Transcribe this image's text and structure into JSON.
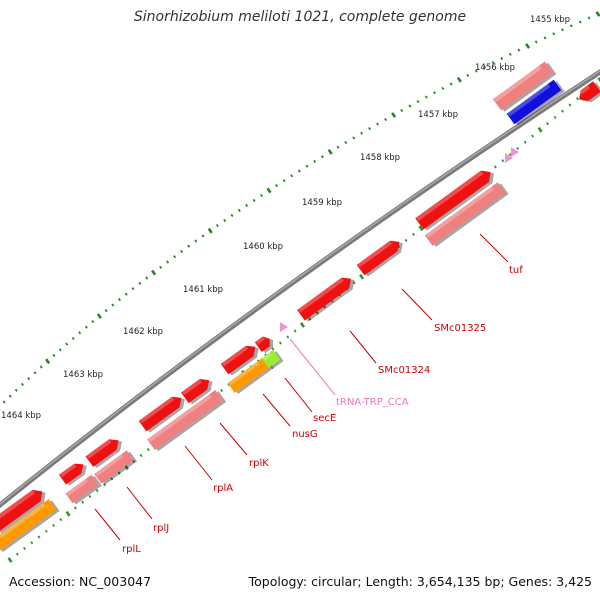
{
  "title": "Sinorhizobium meliloti 1021, complete genome",
  "footer": {
    "accession": "Accession: NC_003047",
    "topology": "Topology: circular; Length: 3,654,135 bp; Genes: 3,425"
  },
  "colors": {
    "backbone": "#808080",
    "dots_outer": "#1f8a1f",
    "dots_inner": "#2a9a2a",
    "cds_forward": "#ee1111",
    "cds_reverse": "#f08080",
    "cds_blue": "#1010dd",
    "rrna_orange": "#ff9900",
    "green": "#99ee33",
    "trna_pink": "#ee88cc",
    "label_red": "#cc0000",
    "label_pink": "#ee77bb"
  },
  "ticks": [
    {
      "label": "1455 kbp"
    },
    {
      "label": "1456 kbp"
    },
    {
      "label": "1457 kbp"
    },
    {
      "label": "1458 kbp"
    },
    {
      "label": "1459 kbp"
    },
    {
      "label": "1460 kbp"
    },
    {
      "label": "1461 kbp"
    },
    {
      "label": "1462 kbp"
    },
    {
      "label": "1463 kbp"
    },
    {
      "label": "1464 kbp"
    }
  ],
  "gene_labels": [
    {
      "name": "tuf"
    },
    {
      "name": "SMc01325"
    },
    {
      "name": "SMc01324"
    },
    {
      "name": "tRNA-TRP_CCA"
    },
    {
      "name": "secE"
    },
    {
      "name": "nusG"
    },
    {
      "name": "rplK"
    },
    {
      "name": "rplA"
    },
    {
      "name": "rplJ"
    },
    {
      "name": "rplL"
    }
  ]
}
